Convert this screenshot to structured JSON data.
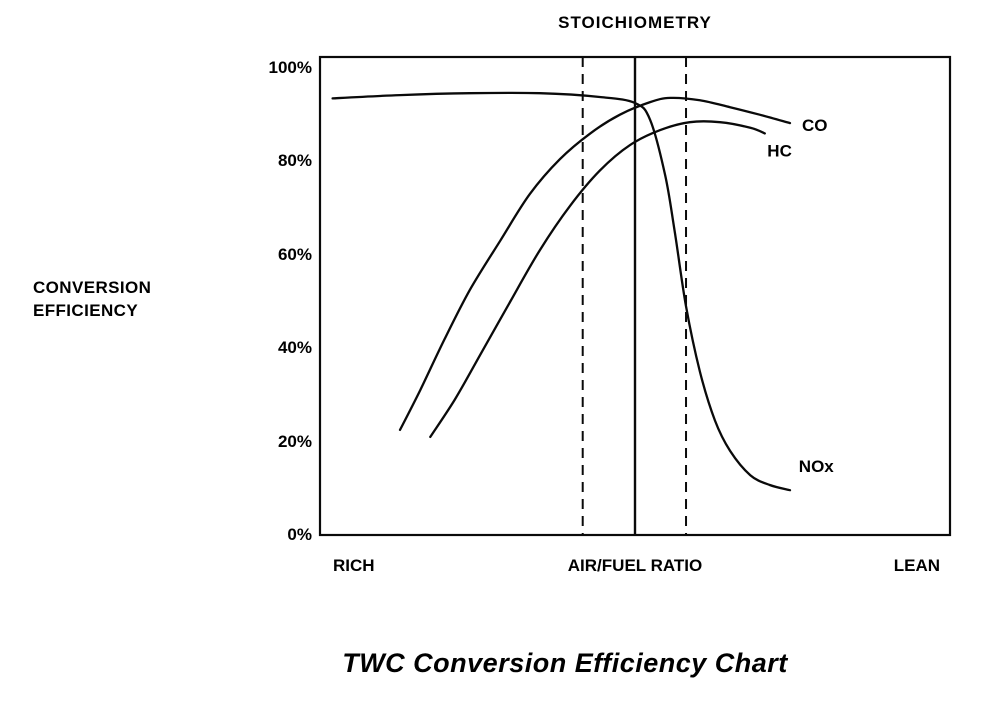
{
  "caption": {
    "text": "TWC Conversion Efficiency Chart"
  },
  "chart_data": {
    "type": "line",
    "title": "STOICHIOMETRY",
    "ylabel_lines": [
      "CONVERSION",
      "EFFICIENCY"
    ],
    "xlabels": {
      "left": "RICH",
      "center": "AIR/FUEL RATIO",
      "right": "LEAN"
    },
    "yticks": [
      {
        "label": "100%",
        "value": 100
      },
      {
        "label": "80%",
        "value": 80
      },
      {
        "label": "60%",
        "value": 60
      },
      {
        "label": "40%",
        "value": 40
      },
      {
        "label": "20%",
        "value": 20
      },
      {
        "label": "0%",
        "value": 0
      }
    ],
    "xlim": [
      0,
      100
    ],
    "ylim": [
      0,
      100
    ],
    "grid": false,
    "legend_position": "inline-labels",
    "line_color": "#0a0a0a",
    "background": "#ffffff",
    "annotations": {
      "stoichiometry_solid_line_x": 50,
      "operating_window_dashed_lines_x": [
        41.7,
        58.1
      ]
    },
    "series": [
      {
        "name": "NOx",
        "label_pos": [
          76.0,
          14.5
        ],
        "points": [
          [
            2,
            93.5
          ],
          [
            12.7,
            94.2
          ],
          [
            23.8,
            94.6
          ],
          [
            34.9,
            94.6
          ],
          [
            44.4,
            93.8
          ],
          [
            50,
            92.5
          ],
          [
            52.4,
            88.9
          ],
          [
            54.8,
            77
          ],
          [
            56.3,
            65
          ],
          [
            58.1,
            49
          ],
          [
            60.3,
            35
          ],
          [
            62.7,
            24.5
          ],
          [
            65.1,
            18
          ],
          [
            68.3,
            12.8
          ],
          [
            71.4,
            10.7
          ],
          [
            74.6,
            9.6
          ]
        ]
      },
      {
        "name": "CO",
        "label_pos": [
          76.5,
          87.5
        ],
        "points": [
          [
            12.7,
            22.5
          ],
          [
            15.9,
            31
          ],
          [
            19.8,
            42
          ],
          [
            23.8,
            52.5
          ],
          [
            28.6,
            63
          ],
          [
            33.3,
            73
          ],
          [
            38.1,
            80.5
          ],
          [
            42.9,
            86
          ],
          [
            47.6,
            90
          ],
          [
            52.4,
            92.7
          ],
          [
            55.6,
            93.6
          ],
          [
            60.3,
            93.1
          ],
          [
            65.1,
            91.6
          ],
          [
            69.8,
            90
          ],
          [
            74.6,
            88.2
          ]
        ]
      },
      {
        "name": "HC",
        "label_pos": [
          71.0,
          82.0
        ],
        "points": [
          [
            17.5,
            21
          ],
          [
            21.4,
            29
          ],
          [
            25.4,
            38.5
          ],
          [
            30.2,
            50
          ],
          [
            34.9,
            61
          ],
          [
            39.7,
            70.5
          ],
          [
            44.4,
            78
          ],
          [
            49.2,
            83.5
          ],
          [
            54,
            86.7
          ],
          [
            58.7,
            88.4
          ],
          [
            63.5,
            88.4
          ],
          [
            68.3,
            87.2
          ],
          [
            70.6,
            86
          ]
        ]
      }
    ]
  }
}
